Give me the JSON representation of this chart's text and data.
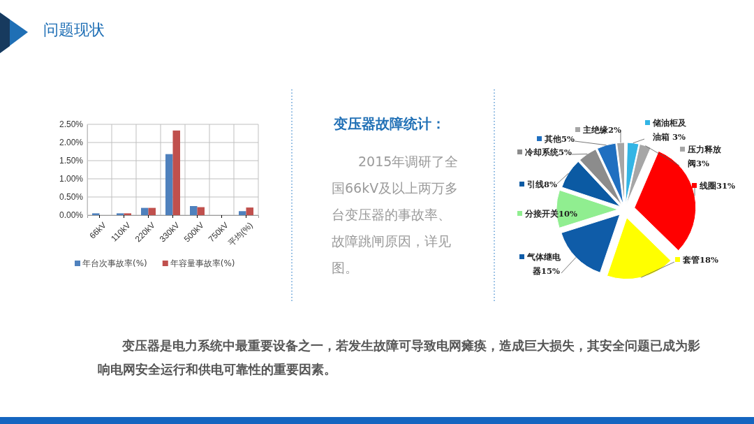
{
  "chart_data": [
    {
      "type": "other",
      "title": "问题现状",
      "annotations": [
        "变压器是电力系统中最重要设备之一，若发生故障可导致电网瘫痪，造成巨大损失，其安全问题已成为影响电网安全运行和供电可靠性的重要因素。"
      ]
    },
    {
      "type": "bar",
      "categories": [
        "66kV",
        "110kV",
        "220kV",
        "330kV",
        "500kV",
        "750kV",
        "平均(%)"
      ],
      "series": [
        {
          "name": "年台次事故率(%)",
          "color": "#4f81bd",
          "values": [
            0.05,
            0.05,
            0.2,
            1.68,
            0.25,
            0,
            0.11
          ]
        },
        {
          "name": "年容量事故率(%)",
          "color": "#c0504d",
          "values": [
            0,
            0.05,
            0.2,
            2.33,
            0.22,
            0,
            0.21
          ]
        }
      ],
      "ylim": [
        0,
        2.5
      ],
      "yticks": [
        {
          "value": 0,
          "label": "0.00%"
        },
        {
          "value": 0.5,
          "label": "0.50%"
        },
        {
          "value": 1,
          "label": "1.00%"
        },
        {
          "value": 1.5,
          "label": "1.50%"
        },
        {
          "value": 2,
          "label": "2.00%"
        },
        {
          "value": 2.5,
          "label": "2.50%"
        }
      ],
      "grid": true,
      "legend": "bottom"
    },
    {
      "type": "other",
      "title": "变压器故障统计：",
      "annotations": [
        "2015年调研了全国66kV及以上两万多台变压器的事故率、故障跳闸原因，详见图。"
      ]
    },
    {
      "type": "pie",
      "categories": [
        "储油柜及油箱",
        "压力释放阀",
        "线圈",
        "套管",
        "气体继电器",
        "分接开关",
        "引线",
        "冷却系统",
        "其他",
        "主绝缘"
      ],
      "values": [
        3,
        3,
        31,
        18,
        15,
        10,
        8,
        5,
        5,
        2
      ],
      "value_labels": [
        " 3%",
        "3%",
        "31%",
        "18%",
        "15%",
        "10%",
        "8%",
        "5%",
        "5%",
        "2%"
      ],
      "legend": "right",
      "colors": [
        "#33b5e5",
        "#a6a6a6",
        "#ff0000",
        "#ffff00",
        "#0f5ca8",
        "#90ee90",
        "#0b5aa3",
        "#8c8c8c",
        "#1f6fc0",
        "#a6a6a6"
      ]
    }
  ]
}
